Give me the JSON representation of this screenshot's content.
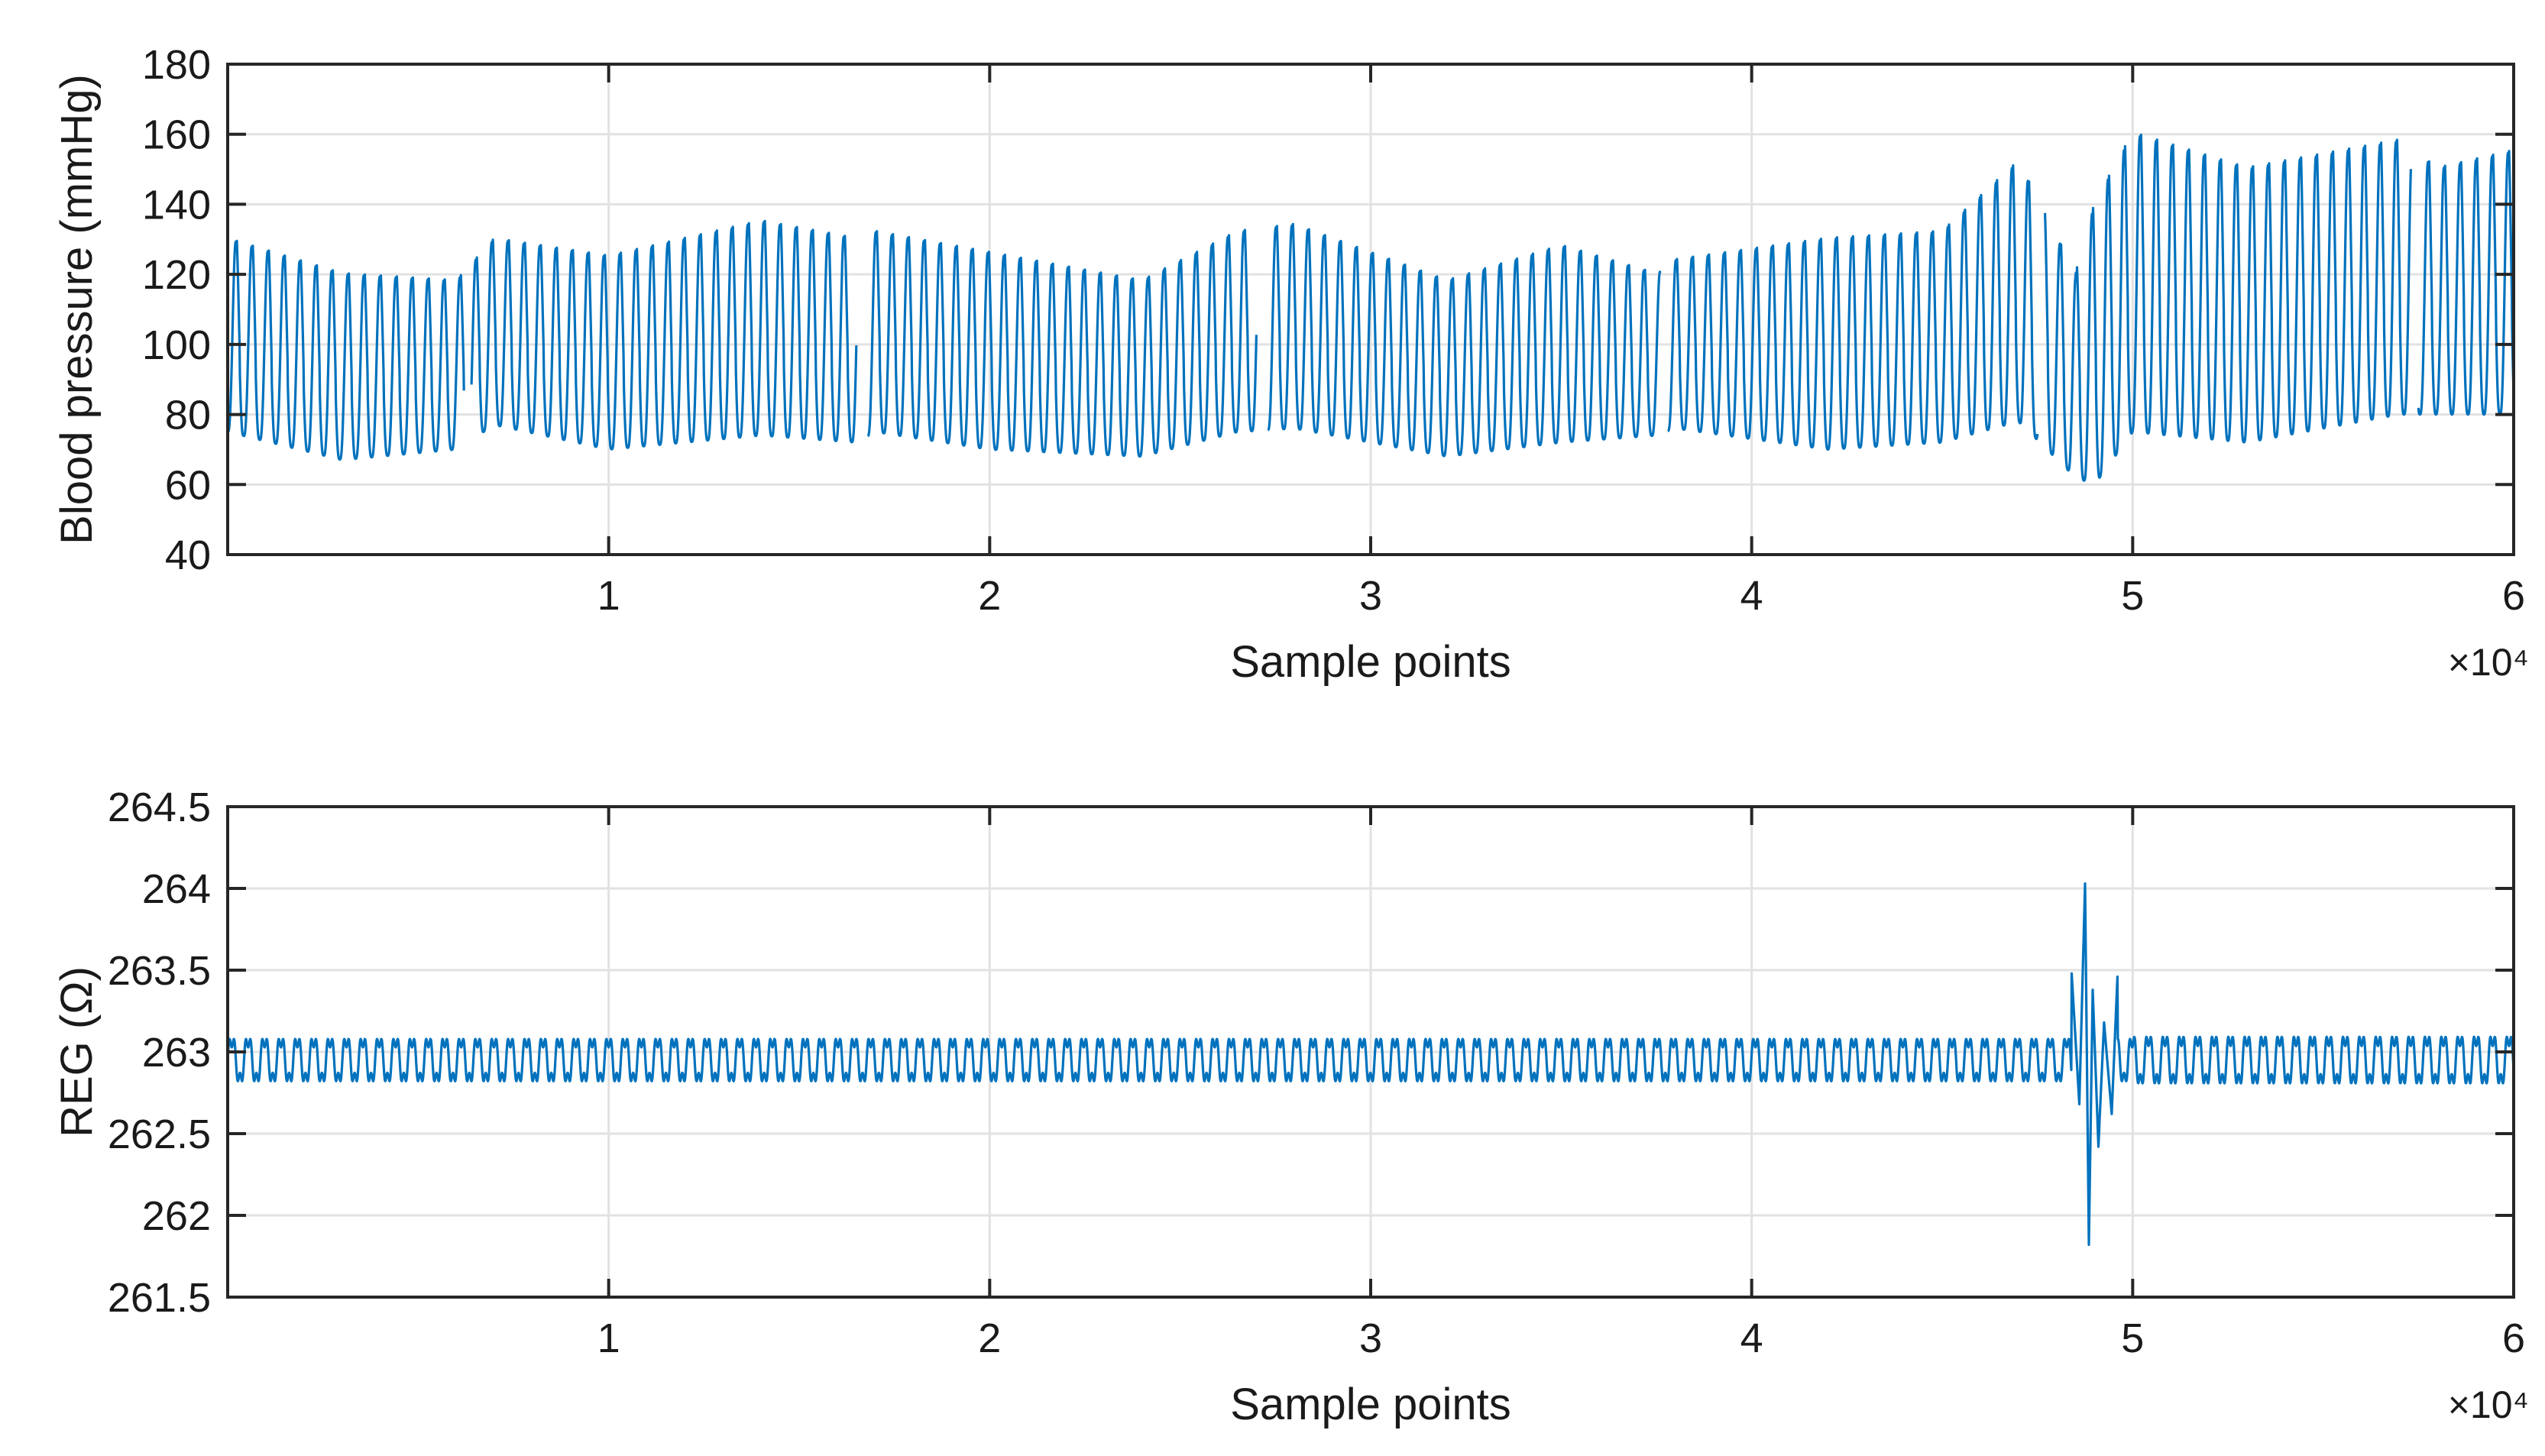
{
  "chart_data": [
    {
      "type": "line",
      "xlabel": "Sample points",
      "ylabel": "Blood pressure (mmHg)",
      "x_exponent_label": "×10⁴",
      "xlim": [
        0,
        60000
      ],
      "ylim": [
        40,
        180
      ],
      "grid": true,
      "x_ticks": [
        10000,
        20000,
        30000,
        40000,
        50000,
        60000
      ],
      "x_tick_labels": [
        "1",
        "2",
        "3",
        "4",
        "5",
        "6"
      ],
      "y_ticks": [
        40,
        60,
        80,
        100,
        120,
        140,
        160,
        180
      ],
      "y_tick_labels": [
        "40",
        "60",
        "80",
        "100",
        "120",
        "140",
        "160",
        "180"
      ],
      "series": [
        {
          "color": "#0072BD",
          "segments": [
            [
              0,
              6200
            ],
            [
              6400,
              16500
            ],
            [
              16800,
              27000
            ],
            [
              27300,
              37600
            ],
            [
              37800,
              47500
            ],
            [
              47700,
              57300
            ],
            [
              57500,
              60000
            ]
          ],
          "envelope": {
            "x": [
              0,
              3000,
              6000,
              7000,
              10000,
              14000,
              16500,
              17000,
              20000,
              24000,
              26500,
              28000,
              32000,
              35000,
              37500,
              38000,
              42000,
              45000,
              47000,
              48500,
              49000,
              50000,
              53000,
              57000,
              58000,
              60000
            ],
            "upper": [
              130,
              120,
              118,
              130,
              125,
              135,
              130,
              132,
              126,
              118,
              132,
              134,
              118,
              128,
              120,
              124,
              130,
              132,
              152,
              120,
              140,
              160,
              150,
              158,
              150,
              155
            ],
            "lower": [
              75,
              67,
              70,
              77,
              70,
              74,
              72,
              75,
              70,
              68,
              75,
              76,
              68,
              72,
              74,
              76,
              70,
              72,
              78,
              62,
              60,
              75,
              72,
              80,
              80,
              80
            ]
          }
        }
      ]
    },
    {
      "type": "line",
      "xlabel": "Sample points",
      "ylabel": "REG (Ω)",
      "x_exponent_label": "×10⁴",
      "xlim": [
        0,
        60000
      ],
      "ylim": [
        261.5,
        264.5
      ],
      "grid": true,
      "x_ticks": [
        10000,
        20000,
        30000,
        40000,
        50000,
        60000
      ],
      "x_tick_labels": [
        "1",
        "2",
        "3",
        "4",
        "5",
        "6"
      ],
      "y_ticks": [
        261.5,
        262,
        262.5,
        263,
        263.5,
        264,
        264.5
      ],
      "y_tick_labels": [
        "261.5",
        "262",
        "262.5",
        "263",
        "263.5",
        "264",
        "264.5"
      ],
      "series": [
        {
          "color": "#0072BD",
          "baseline": 262.95,
          "amplitude": 0.13,
          "burst": {
            "x": [
              48400,
              48600,
              48750,
              48850,
              48950,
              49100,
              49250,
              49450,
              49600
            ],
            "y": [
              263.48,
              262.68,
              264.03,
              261.82,
              263.38,
              262.42,
              263.18,
              262.62,
              263.46
            ]
          }
        }
      ]
    }
  ]
}
